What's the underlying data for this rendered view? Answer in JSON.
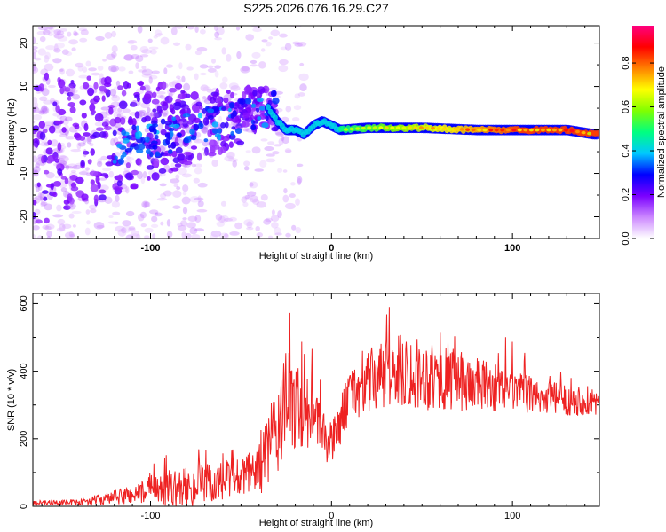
{
  "title": "S225.2026.076.16.29.C27",
  "chart_data": [
    {
      "type": "heatmap",
      "name": "spectrogram",
      "xlabel": "Height of straight line (km)",
      "ylabel": "Frequency (Hz)",
      "xlim": [
        -165,
        148
      ],
      "ylim": [
        -25,
        24
      ],
      "xticks": [
        -100,
        0,
        100
      ],
      "xtick_labels": [
        "-100",
        "0",
        "100"
      ],
      "yticks": [
        20,
        10,
        0,
        -10,
        -20
      ],
      "ytick_labels": [
        "20",
        "10",
        "0",
        "-10",
        "-20"
      ],
      "colorbar": {
        "label": "Normalized spectral amplitude",
        "range": [
          0,
          0.97
        ],
        "ticks": [
          0.0,
          0.2,
          0.4,
          0.6,
          0.8
        ],
        "tick_labels": [
          "0.0",
          "0.2",
          "0.4",
          "0.6",
          "0.8"
        ],
        "colors": [
          "#ffffff",
          "#cc88ff",
          "#7a00ff",
          "#0000ff",
          "#00c8ff",
          "#00ff80",
          "#80ff00",
          "#ffff00",
          "#ff8000",
          "#ff0000",
          "#ff0080"
        ]
      },
      "features": {
        "ridge": [
          [
            -50,
            3
          ],
          [
            -40,
            5
          ],
          [
            -35,
            5
          ],
          [
            -30,
            2
          ],
          [
            -25,
            0
          ],
          [
            -20,
            0
          ],
          [
            -15,
            -1
          ],
          [
            -10,
            1
          ],
          [
            -5,
            2
          ],
          [
            0,
            1
          ],
          [
            5,
            0
          ],
          [
            20,
            0.5
          ],
          [
            50,
            0.5
          ],
          [
            80,
            0
          ],
          [
            110,
            0
          ],
          [
            130,
            0
          ],
          [
            145,
            -1
          ]
        ]
      }
    },
    {
      "type": "line",
      "name": "snr",
      "xlabel": "Height of straight line (km)",
      "ylabel": "SNR (10 * v/v)",
      "xlim": [
        -165,
        148
      ],
      "ylim": [
        0,
        630
      ],
      "xticks": [
        -100,
        0,
        100
      ],
      "xtick_labels": [
        "-100",
        "0",
        "100"
      ],
      "yticks": [
        0,
        200,
        400,
        600
      ],
      "ytick_labels": [
        "0",
        "200",
        "400",
        "600"
      ],
      "color": "#ee2222",
      "envelope": [
        {
          "x": -165,
          "base": 10,
          "amp": 12
        },
        {
          "x": -140,
          "base": 12,
          "amp": 15
        },
        {
          "x": -120,
          "base": 25,
          "amp": 40
        },
        {
          "x": -100,
          "base": 45,
          "amp": 70
        },
        {
          "x": -80,
          "base": 55,
          "amp": 110
        },
        {
          "x": -60,
          "base": 70,
          "amp": 120
        },
        {
          "x": -45,
          "base": 90,
          "amp": 130
        },
        {
          "x": -35,
          "base": 160,
          "amp": 200
        },
        {
          "x": -25,
          "base": 300,
          "amp": 300
        },
        {
          "x": -15,
          "base": 300,
          "amp": 250
        },
        {
          "x": -10,
          "base": 260,
          "amp": 150
        },
        {
          "x": 0,
          "base": 180,
          "amp": 120
        },
        {
          "x": 10,
          "base": 330,
          "amp": 140
        },
        {
          "x": 25,
          "base": 380,
          "amp": 190
        },
        {
          "x": 40,
          "base": 400,
          "amp": 200
        },
        {
          "x": 60,
          "base": 380,
          "amp": 180
        },
        {
          "x": 80,
          "base": 360,
          "amp": 150
        },
        {
          "x": 100,
          "base": 340,
          "amp": 110
        },
        {
          "x": 120,
          "base": 320,
          "amp": 90
        },
        {
          "x": 148,
          "base": 310,
          "amp": 80
        }
      ]
    }
  ]
}
